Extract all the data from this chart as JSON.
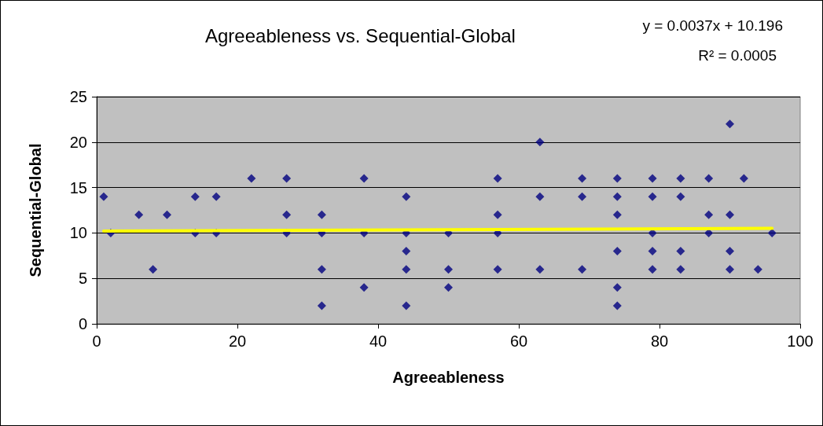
{
  "chart_data": {
    "type": "scatter",
    "title": "Agreeableness vs. Sequential-Global",
    "xlabel": "Agreeableness",
    "ylabel": "Sequential-Global",
    "annotations": [
      "y = 0.0037x + 10.196",
      "R² = 0.0005"
    ],
    "xlim": [
      0,
      100
    ],
    "xticks": [
      0,
      20,
      40,
      60,
      80,
      100
    ],
    "ylim": [
      0,
      25
    ],
    "yticks": [
      0,
      5,
      10,
      15,
      20,
      25
    ],
    "grid": "y",
    "series": [
      {
        "color": "#000080",
        "marker": "diamond",
        "x": [
          1,
          2,
          6,
          8,
          10,
          14,
          14,
          17,
          17,
          22,
          27,
          27,
          27,
          32,
          32,
          32,
          32,
          38,
          38,
          38,
          44,
          44,
          44,
          44,
          44,
          50,
          50,
          50,
          57,
          57,
          57,
          57,
          63,
          63,
          63,
          69,
          69,
          69,
          74,
          74,
          74,
          74,
          74,
          74,
          79,
          79,
          79,
          79,
          79,
          83,
          83,
          83,
          83,
          87,
          87,
          87,
          90,
          90,
          90,
          90,
          92,
          94,
          96
        ],
        "values": [
          14,
          10,
          12,
          6,
          12,
          14,
          10,
          14,
          10,
          16,
          16,
          12,
          10,
          12,
          10,
          6,
          2,
          16,
          10,
          4,
          14,
          10,
          8,
          6,
          2,
          10,
          6,
          4,
          16,
          12,
          10,
          6,
          20,
          14,
          6,
          16,
          14,
          6,
          16,
          14,
          12,
          8,
          4,
          2,
          16,
          14,
          10,
          8,
          6,
          16,
          14,
          8,
          6,
          16,
          12,
          10,
          22,
          12,
          8,
          6,
          16,
          6,
          10
        ]
      },
      {
        "type": "line",
        "color": "#ffff00",
        "x": [
          1,
          96
        ],
        "values": [
          10.2,
          10.5
        ],
        "marker": "none",
        "line_style": "solid"
      }
    ]
  }
}
